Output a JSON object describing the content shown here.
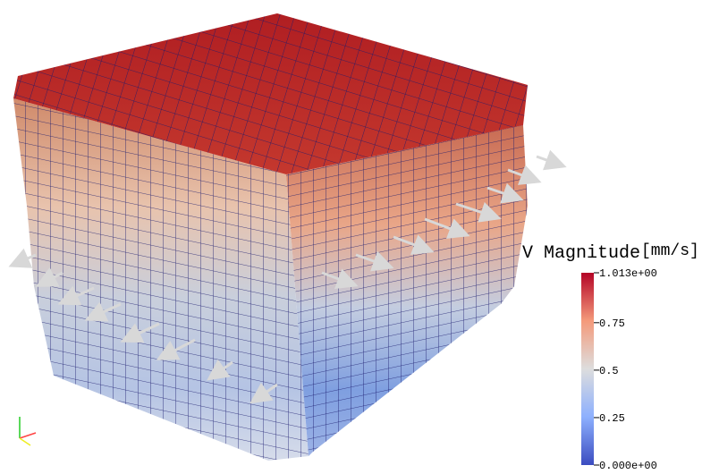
{
  "colorbar": {
    "title": "V Magnitude",
    "unit": "[mm/s]",
    "lim": [
      0,
      1.013
    ],
    "ticks": [
      {
        "value": 1.013,
        "label": "1.013e+00"
      },
      0.75,
      0.5,
      0.25,
      {
        "value": 0,
        "label": "0.000e+00"
      }
    ]
  }
}
